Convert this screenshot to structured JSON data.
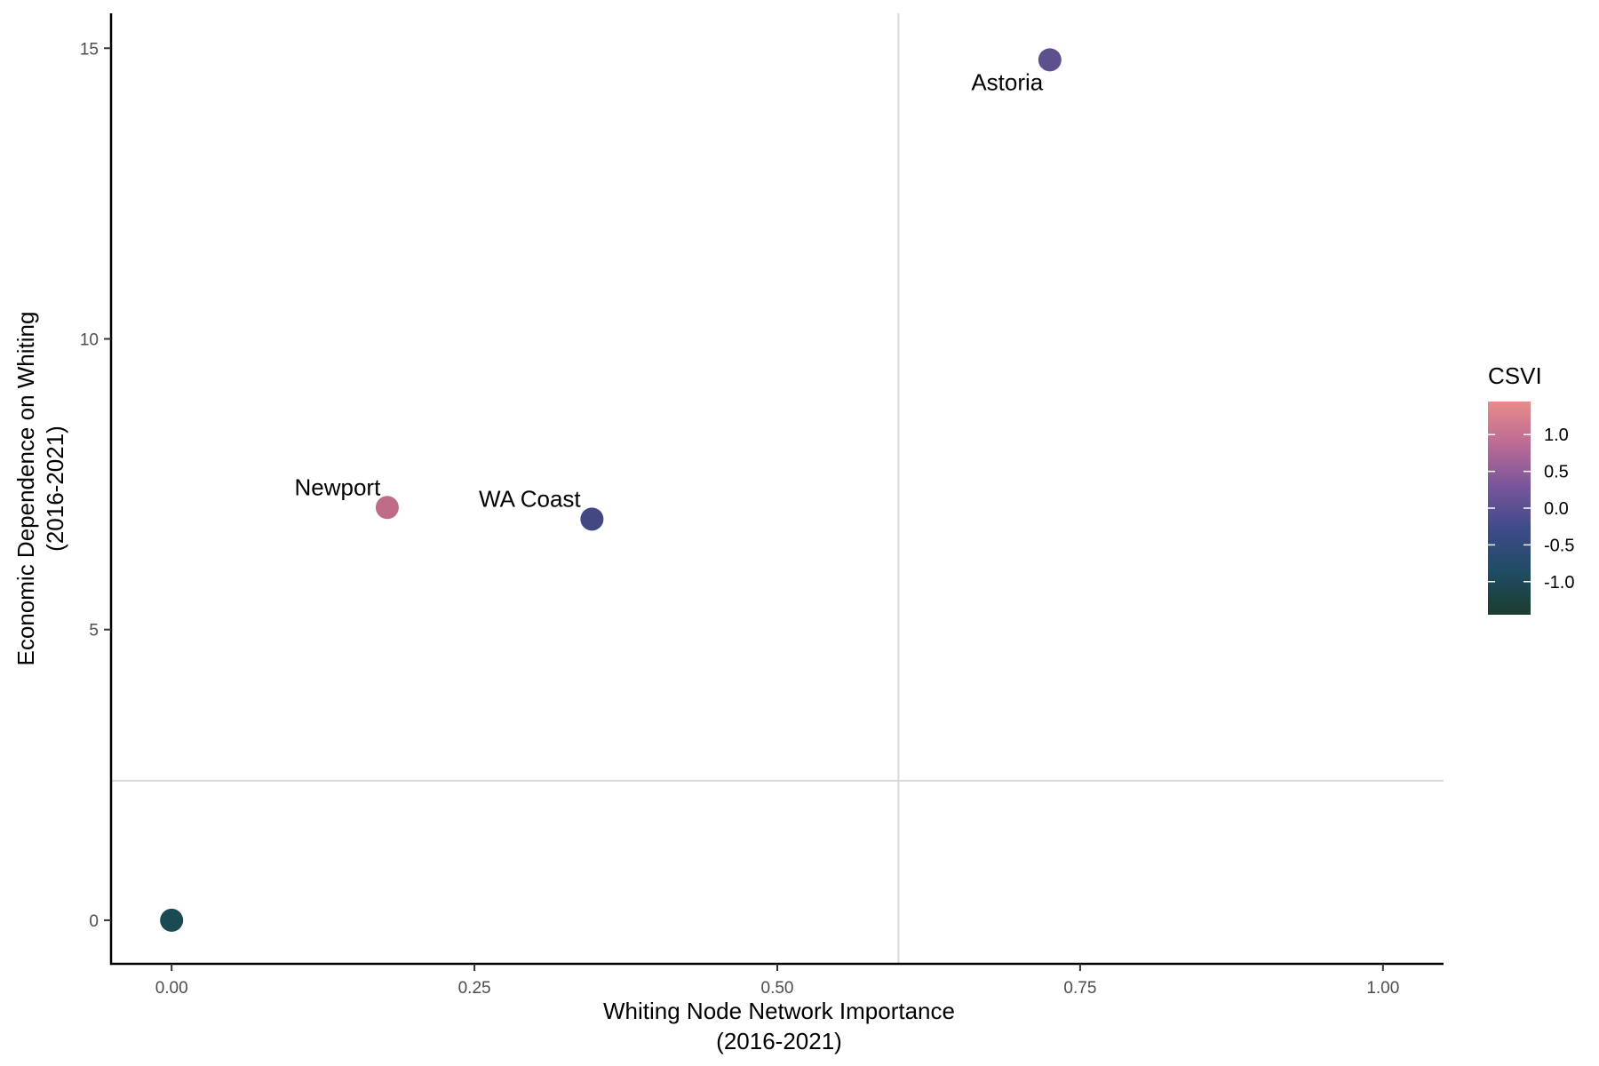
{
  "chart_data": {
    "type": "scatter",
    "title": "",
    "xlabel": [
      "Whiting Node Network Importance",
      "(2016-2021)"
    ],
    "ylabel": [
      "Economic Dependence on Whiting",
      "(2016-2021)"
    ],
    "xlim": [
      -0.05,
      1.05
    ],
    "ylim": [
      -0.75,
      15.6
    ],
    "x_ticks": [
      0.0,
      0.25,
      0.5,
      0.75,
      1.0
    ],
    "x_tick_labels": [
      "0.00",
      "0.25",
      "0.50",
      "0.75",
      "1.00"
    ],
    "y_ticks": [
      0,
      5,
      10,
      15
    ],
    "y_tick_labels": [
      "0",
      "5",
      "10",
      "15"
    ],
    "reference_lines": {
      "vertical_x": 0.6,
      "horizontal_y": 2.4,
      "color": "#d9d9d9"
    },
    "grid": false,
    "points": [
      {
        "label": "Astoria",
        "x": 0.725,
        "y": 14.8,
        "csvi": 0.35,
        "color": "#5e4f8f"
      },
      {
        "label": "Newport",
        "x": 0.178,
        "y": 7.1,
        "csvi": 1.1,
        "color": "#c06c89"
      },
      {
        "label": "WA Coast",
        "x": 0.347,
        "y": 6.9,
        "csvi": -0.1,
        "color": "#434883"
      },
      {
        "label": "",
        "x": 0.0,
        "y": 0.0,
        "csvi": -0.8,
        "color": "#1a4a52"
      }
    ],
    "legend": {
      "title": "CSVI",
      "placement": "right",
      "range": [
        -1.45,
        1.45
      ],
      "ticks": [
        1.0,
        0.5,
        0.0,
        -0.5,
        -1.0
      ],
      "tick_labels": [
        "1.0",
        "0.5",
        "0.0",
        "-0.5",
        "-1.0"
      ],
      "gradient_stops": [
        "#e88b8b",
        "#bb6b95",
        "#77559a",
        "#3e4a8a",
        "#1f4c63",
        "#1b3d2f"
      ]
    }
  }
}
